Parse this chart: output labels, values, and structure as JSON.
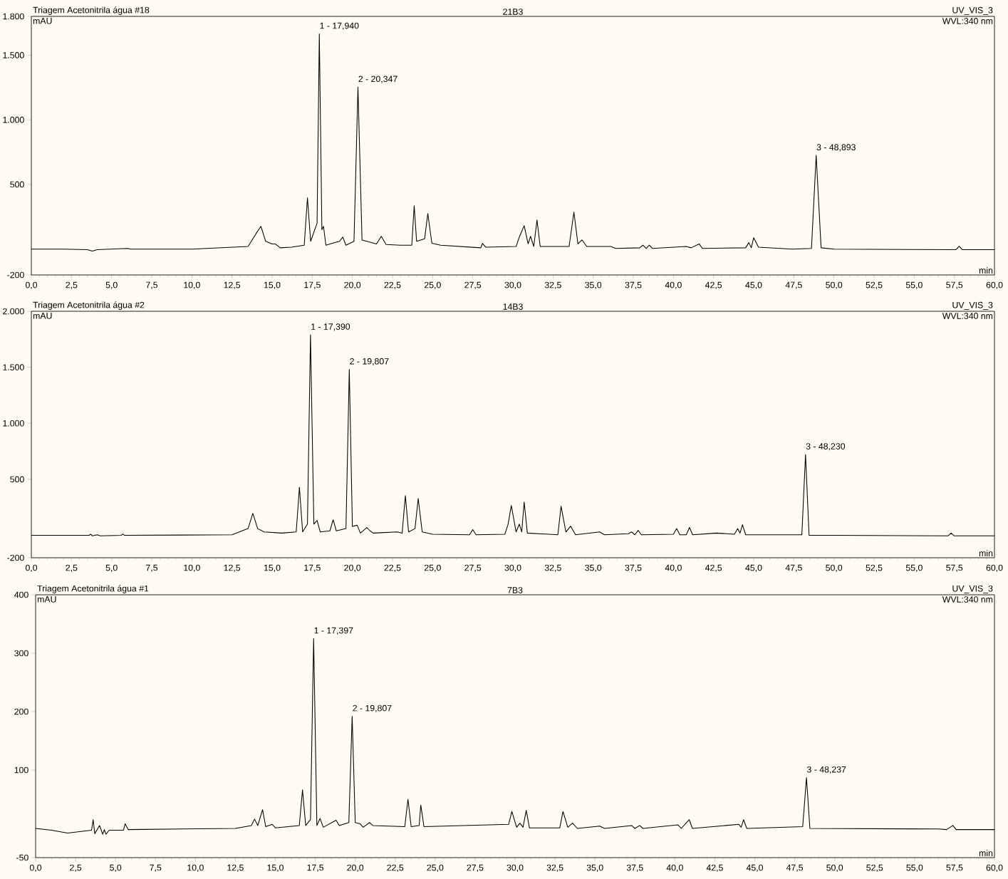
{
  "chart_data": [
    {
      "type": "line",
      "title": "Triagem Acetonitrila água #18",
      "subtitle": "21B3",
      "xlabel": "min",
      "ylabel": "mAU",
      "annotations": [
        "UV_VIS_3",
        "WVL:340 nm",
        {
          "text": "1 - 17,940",
          "x": 17.94,
          "y": 1665
        },
        {
          "text": "2 - 20,347",
          "x": 20.347,
          "y": 1253
        },
        {
          "text": "3 - 48,893",
          "x": 48.893,
          "y": 725
        }
      ],
      "xlim": [
        0,
        60
      ],
      "ylim": [
        -200,
        1800
      ],
      "xticks": [
        {
          "value": 0,
          "label": "0,0"
        },
        {
          "value": 2.5,
          "label": "2,5"
        },
        {
          "value": 5,
          "label": "5,0"
        },
        {
          "value": 7.5,
          "label": "7,5"
        },
        {
          "value": 10,
          "label": "10,0"
        },
        {
          "value": 12.5,
          "label": "12,5"
        },
        {
          "value": 15,
          "label": "15,0"
        },
        {
          "value": 17.5,
          "label": "17,5"
        },
        {
          "value": 20,
          "label": "20,0"
        },
        {
          "value": 22.5,
          "label": "22,5"
        },
        {
          "value": 25,
          "label": "25,0"
        },
        {
          "value": 27.5,
          "label": "27,5"
        },
        {
          "value": 30,
          "label": "30,0"
        },
        {
          "value": 32.5,
          "label": "32,5"
        },
        {
          "value": 35,
          "label": "35,0"
        },
        {
          "value": 37.5,
          "label": "37,5"
        },
        {
          "value": 40,
          "label": "40,0"
        },
        {
          "value": 42.5,
          "label": "42,5"
        },
        {
          "value": 45,
          "label": "45,0"
        },
        {
          "value": 47.5,
          "label": "47,5"
        },
        {
          "value": 50,
          "label": "50,0"
        },
        {
          "value": 52.5,
          "label": "52,5"
        },
        {
          "value": 55,
          "label": "55,0"
        },
        {
          "value": 57.5,
          "label": "57,5"
        },
        {
          "value": 60,
          "label": "60,0"
        }
      ],
      "yticks": [
        -200,
        500,
        {
          "value": 1000,
          "label": "1.000"
        },
        {
          "value": 1500,
          "label": "1.500"
        },
        {
          "value": 1800,
          "label": "1.800"
        }
      ],
      "series": [
        {
          "color": "#000000",
          "x": [
            0,
            2,
            3.5,
            3.8,
            4.1,
            6.0,
            6.2,
            10,
            13.5,
            14.0,
            14.3,
            14.6,
            15.0,
            15.2,
            15.5,
            16.2,
            17.0,
            17.2,
            17.4,
            17.8,
            17.94,
            18.1,
            18.2,
            18.35,
            18.6,
            19.2,
            19.4,
            19.6,
            20.1,
            20.347,
            20.6,
            20.9,
            21.5,
            21.8,
            22.1,
            23.0,
            23.7,
            23.85,
            24.0,
            24.5,
            24.7,
            24.95,
            25.5,
            28.0,
            28.1,
            28.3,
            30.2,
            30.4,
            30.7,
            30.95,
            31.1,
            31.3,
            31.5,
            31.7,
            33.5,
            33.8,
            34.05,
            34.3,
            34.6,
            36.1,
            36.4,
            37.9,
            38.1,
            38.3,
            38.5,
            38.7,
            40.8,
            41.1,
            41.6,
            41.8,
            44.5,
            44.7,
            44.85,
            45.0,
            45.3,
            47.4,
            48.6,
            48.893,
            49.2,
            50,
            57.6,
            57.8,
            58.0,
            60
          ],
          "values": [
            0,
            0,
            -5,
            -15,
            -5,
            5,
            0,
            0,
            20,
            120,
            176,
            60,
            40,
            40,
            10,
            15,
            30,
            396,
            60,
            200,
            1665,
            150,
            176,
            30,
            40,
            60,
            93,
            30,
            60,
            1253,
            70,
            60,
            40,
            99,
            35,
            30,
            30,
            335,
            60,
            80,
            275,
            45,
            30,
            10,
            44,
            15,
            20,
            93,
            181,
            40,
            99,
            20,
            225,
            20,
            20,
            286,
            40,
            71,
            20,
            20,
            5,
            10,
            30,
            5,
            30,
            5,
            20,
            10,
            40,
            5,
            10,
            50,
            10,
            88,
            15,
            0,
            5,
            725,
            10,
            0,
            -5,
            22,
            -5,
            -5
          ]
        }
      ]
    },
    {
      "type": "line",
      "title": "Triagem Acetonitrila água #2",
      "subtitle": "14B3",
      "xlabel": "min",
      "ylabel": "mAU",
      "annotations": [
        "UV_VIS_3",
        "WVL:340 nm",
        {
          "text": "1 - 17,390",
          "x": 17.39,
          "y": 1790
        },
        {
          "text": "2 - 19,807",
          "x": 19.807,
          "y": 1481
        },
        {
          "text": "3 - 48,230",
          "x": 48.23,
          "y": 722
        }
      ],
      "xlim": [
        0,
        60
      ],
      "ylim": [
        -200,
        2000
      ],
      "xticks": [
        {
          "value": 0,
          "label": "0,0"
        },
        {
          "value": 2.5,
          "label": "2,5"
        },
        {
          "value": 5,
          "label": "5,0"
        },
        {
          "value": 7.5,
          "label": "7,5"
        },
        {
          "value": 10,
          "label": "10,0"
        },
        {
          "value": 12.5,
          "label": "12,5"
        },
        {
          "value": 15,
          "label": "15,0"
        },
        {
          "value": 17.5,
          "label": "17,5"
        },
        {
          "value": 20,
          "label": "20,0"
        },
        {
          "value": 22.5,
          "label": "22,5"
        },
        {
          "value": 25,
          "label": "25,0"
        },
        {
          "value": 27.5,
          "label": "27,5"
        },
        {
          "value": 30,
          "label": "30,0"
        },
        {
          "value": 32.5,
          "label": "32,5"
        },
        {
          "value": 35,
          "label": "35,0"
        },
        {
          "value": 37.5,
          "label": "37,5"
        },
        {
          "value": 40,
          "label": "40,0"
        },
        {
          "value": 42.5,
          "label": "42,5"
        },
        {
          "value": 45,
          "label": "45,0"
        },
        {
          "value": 47.5,
          "label": "47,5"
        },
        {
          "value": 50,
          "label": "50,0"
        },
        {
          "value": 52.5,
          "label": "52,5"
        },
        {
          "value": 55,
          "label": "55,0"
        },
        {
          "value": 57.5,
          "label": "57,5"
        },
        {
          "value": 60,
          "label": "60,0"
        }
      ],
      "yticks": [
        -200,
        500,
        {
          "value": 1000,
          "label": "1.000"
        },
        {
          "value": 1500,
          "label": "1.500"
        },
        {
          "value": 2000,
          "label": "2.000"
        }
      ],
      "series": [
        {
          "color": "#000000",
          "x": [
            0,
            3.6,
            3.7,
            3.8,
            4.1,
            4.3,
            5.6,
            5.7,
            5.8,
            12.5,
            13.5,
            13.8,
            14.1,
            14.5,
            15.6,
            16.5,
            16.7,
            16.9,
            17.2,
            17.39,
            17.6,
            17.8,
            18.0,
            18.6,
            18.8,
            19.0,
            19.6,
            19.807,
            20.0,
            20.3,
            20.5,
            20.9,
            21.1,
            21.3,
            22.8,
            23.1,
            23.3,
            23.5,
            23.9,
            24.1,
            24.35,
            25.0,
            27.3,
            27.5,
            27.7,
            29.5,
            29.7,
            29.9,
            30.2,
            30.4,
            30.55,
            30.7,
            30.9,
            32.8,
            33.0,
            33.3,
            33.6,
            33.9,
            35.4,
            35.7,
            37.2,
            37.4,
            37.6,
            37.8,
            38.0,
            40.0,
            40.2,
            40.4,
            40.8,
            41.0,
            41.2,
            42.7,
            43.8,
            44.0,
            44.15,
            44.3,
            44.5,
            48.0,
            48.23,
            48.45,
            50,
            57.1,
            57.3,
            57.5,
            60
          ],
          "values": [
            0,
            0,
            10,
            -5,
            5,
            -5,
            0,
            12,
            0,
            5,
            60,
            196,
            60,
            30,
            20,
            30,
            430,
            30,
            100,
            1790,
            100,
            133,
            30,
            40,
            139,
            40,
            60,
            1481,
            80,
            90,
            20,
            70,
            40,
            20,
            30,
            20,
            354,
            30,
            60,
            329,
            30,
            10,
            5,
            51,
            5,
            10,
            100,
            266,
            30,
            100,
            30,
            297,
            20,
            5,
            260,
            30,
            82,
            5,
            30,
            5,
            15,
            30,
            5,
            45,
            5,
            10,
            60,
            5,
            5,
            70,
            5,
            20,
            10,
            60,
            20,
            95,
            5,
            5,
            722,
            0,
            0,
            -5,
            20,
            -5,
            -5
          ]
        }
      ]
    },
    {
      "type": "line",
      "title": "Triagem Acetonitrila água #1",
      "subtitle": "7B3",
      "xlabel": "min",
      "ylabel": "mAU",
      "annotations": [
        "UV_VIS_3",
        "WVL:340 nm",
        {
          "text": "1 - 17,397",
          "x": 17.397,
          "y": 325
        },
        {
          "text": "2 - 19,807",
          "x": 19.807,
          "y": 192
        },
        {
          "text": "3 - 48,237",
          "x": 48.237,
          "y": 87
        }
      ],
      "xlim": [
        0,
        60
      ],
      "ylim": [
        -50,
        400
      ],
      "xticks": [
        {
          "value": 0,
          "label": "0,0"
        },
        {
          "value": 2.5,
          "label": "2,5"
        },
        {
          "value": 5,
          "label": "5,0"
        },
        {
          "value": 7.5,
          "label": "7,5"
        },
        {
          "value": 10,
          "label": "10,0"
        },
        {
          "value": 12.5,
          "label": "12,5"
        },
        {
          "value": 15,
          "label": "15,0"
        },
        {
          "value": 17.5,
          "label": "17,5"
        },
        {
          "value": 20,
          "label": "20,0"
        },
        {
          "value": 22.5,
          "label": "22,5"
        },
        {
          "value": 25,
          "label": "25,0"
        },
        {
          "value": 27.5,
          "label": "27,5"
        },
        {
          "value": 30,
          "label": "30,0"
        },
        {
          "value": 32.5,
          "label": "32,5"
        },
        {
          "value": 35,
          "label": "35,0"
        },
        {
          "value": 37.5,
          "label": "37,5"
        },
        {
          "value": 40,
          "label": "40,0"
        },
        {
          "value": 42.5,
          "label": "42,5"
        },
        {
          "value": 45,
          "label": "45,0"
        },
        {
          "value": 47.5,
          "label": "47,5"
        },
        {
          "value": 50,
          "label": "50,0"
        },
        {
          "value": 52.5,
          "label": "52,5"
        },
        {
          "value": 55,
          "label": "55,0"
        },
        {
          "value": 57.5,
          "label": "57,5"
        },
        {
          "value": 60,
          "label": "60,0"
        }
      ],
      "yticks": [
        -50,
        100,
        200,
        300,
        400
      ],
      "series": [
        {
          "color": "#000000",
          "x": [
            0,
            1.0,
            2.0,
            3.5,
            3.6,
            3.7,
            4.0,
            4.2,
            4.3,
            4.4,
            4.6,
            5.5,
            5.6,
            5.8,
            12.5,
            13.5,
            13.7,
            13.9,
            14.2,
            14.4,
            14.8,
            15.0,
            16.5,
            16.7,
            16.9,
            17.2,
            17.397,
            17.6,
            17.8,
            18.0,
            18.8,
            19.0,
            19.6,
            19.807,
            20.0,
            20.3,
            20.5,
            20.9,
            21.1,
            23.1,
            23.3,
            23.5,
            24.0,
            24.1,
            24.3,
            29.6,
            29.8,
            30.1,
            30.3,
            30.5,
            30.7,
            30.9,
            32.8,
            33.0,
            33.3,
            33.6,
            33.9,
            35.3,
            35.6,
            37.3,
            37.5,
            37.8,
            38.0,
            40.2,
            40.4,
            40.9,
            41.1,
            44.0,
            44.15,
            44.3,
            44.5,
            48.0,
            48.237,
            48.45,
            56.5,
            57.0,
            57.4,
            57.6,
            60
          ],
          "values": [
            0,
            -3,
            -8,
            -3,
            15,
            -9,
            5,
            -10,
            -2,
            -10,
            -3,
            -3,
            8,
            -2,
            0,
            5,
            16,
            5,
            32,
            3,
            7,
            1,
            5,
            66,
            5,
            15,
            325,
            5,
            17,
            2,
            14,
            5,
            10,
            192,
            10,
            8,
            2,
            10,
            5,
            3,
            50,
            3,
            5,
            40,
            3,
            7,
            29,
            2,
            9,
            2,
            31,
            1,
            1,
            29,
            2,
            9,
            0,
            4,
            0,
            5,
            0,
            5,
            0,
            6,
            0,
            15,
            0,
            7,
            2,
            15,
            0,
            3,
            87,
            0,
            -1,
            -2,
            5,
            -2,
            -2
          ]
        }
      ]
    }
  ]
}
